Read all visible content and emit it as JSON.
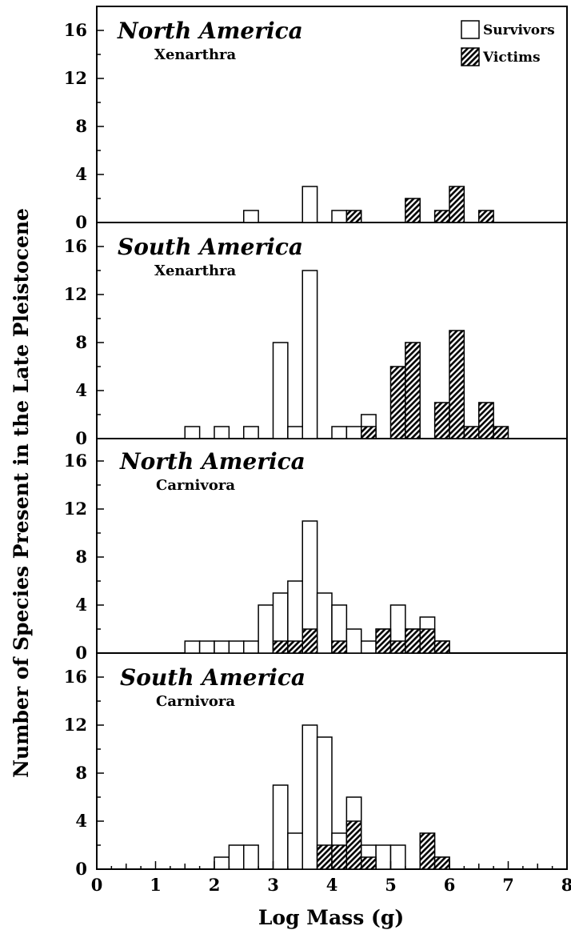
{
  "chart_data": {
    "type": "bar",
    "ylabel": "Number of Species Present in the Late Pleistocene",
    "xlabel": "Log Mass (g)",
    "xlim": [
      0,
      8
    ],
    "ylim": [
      0,
      18
    ],
    "x_ticks": [
      "0",
      "1",
      "2",
      "3",
      "4",
      "5",
      "6",
      "7",
      "8"
    ],
    "y_ticks": [
      "0",
      "4",
      "8",
      "12",
      "16"
    ],
    "bin_width": 0.25,
    "legend": {
      "placement": "top-right",
      "entries": [
        {
          "name": "Survivors",
          "style": "open"
        },
        {
          "name": "Victims",
          "style": "hatched"
        }
      ]
    },
    "panels": [
      {
        "title": "North America",
        "subtitle": "Xenarthra",
        "series": [
          {
            "name": "Survivors",
            "bins": [
              [
                2.5,
                1
              ],
              [
                3.5,
                3
              ],
              [
                4.0,
                1
              ]
            ]
          },
          {
            "name": "Victims",
            "bins": [
              [
                4.25,
                1
              ],
              [
                5.25,
                2
              ],
              [
                5.75,
                1
              ],
              [
                6.0,
                3
              ],
              [
                6.5,
                1
              ]
            ]
          }
        ]
      },
      {
        "title": "South America",
        "subtitle": "Xenarthra",
        "series": [
          {
            "name": "Survivors",
            "bins": [
              [
                1.5,
                1
              ],
              [
                2.0,
                1
              ],
              [
                2.5,
                1
              ],
              [
                3.0,
                8
              ],
              [
                3.25,
                1
              ],
              [
                3.5,
                14
              ],
              [
                4.0,
                1
              ],
              [
                4.25,
                1
              ],
              [
                4.5,
                2
              ]
            ]
          },
          {
            "name": "Victims",
            "bins": [
              [
                4.5,
                1
              ],
              [
                5.0,
                6
              ],
              [
                5.25,
                8
              ],
              [
                5.75,
                3
              ],
              [
                6.0,
                9
              ],
              [
                6.25,
                1
              ],
              [
                6.5,
                3
              ],
              [
                6.75,
                1
              ]
            ]
          }
        ]
      },
      {
        "title": "North America",
        "subtitle": "Carnivora",
        "series": [
          {
            "name": "Survivors",
            "bins": [
              [
                1.5,
                1
              ],
              [
                1.75,
                1
              ],
              [
                2.0,
                1
              ],
              [
                2.25,
                1
              ],
              [
                2.5,
                1
              ],
              [
                2.75,
                4
              ],
              [
                3.0,
                5
              ],
              [
                3.25,
                6
              ],
              [
                3.5,
                11
              ],
              [
                3.75,
                5
              ],
              [
                4.0,
                4
              ],
              [
                4.25,
                2
              ],
              [
                4.5,
                1
              ],
              [
                4.75,
                2
              ],
              [
                5.0,
                4
              ],
              [
                5.25,
                2
              ],
              [
                5.5,
                3
              ],
              [
                5.75,
                1
              ]
            ]
          },
          {
            "name": "Victims",
            "bins": [
              [
                3.0,
                1
              ],
              [
                3.25,
                1
              ],
              [
                3.5,
                2
              ],
              [
                4.0,
                1
              ],
              [
                4.75,
                2
              ],
              [
                5.0,
                1
              ],
              [
                5.25,
                2
              ],
              [
                5.5,
                2
              ],
              [
                5.75,
                1
              ]
            ]
          }
        ]
      },
      {
        "title": "South America",
        "subtitle": "Carnivora",
        "series": [
          {
            "name": "Survivors",
            "bins": [
              [
                2.0,
                1
              ],
              [
                2.25,
                2
              ],
              [
                2.5,
                2
              ],
              [
                3.0,
                7
              ],
              [
                3.25,
                3
              ],
              [
                3.5,
                12
              ],
              [
                3.75,
                11
              ],
              [
                4.0,
                3
              ],
              [
                4.25,
                6
              ],
              [
                4.5,
                2
              ],
              [
                4.75,
                2
              ],
              [
                5.0,
                2
              ],
              [
                5.5,
                1
              ],
              [
                5.75,
                1
              ]
            ]
          },
          {
            "name": "Victims",
            "bins": [
              [
                3.75,
                2
              ],
              [
                4.0,
                2
              ],
              [
                4.25,
                4
              ],
              [
                4.5,
                1
              ],
              [
                5.5,
                3
              ],
              [
                5.75,
                1
              ]
            ]
          }
        ]
      }
    ]
  }
}
